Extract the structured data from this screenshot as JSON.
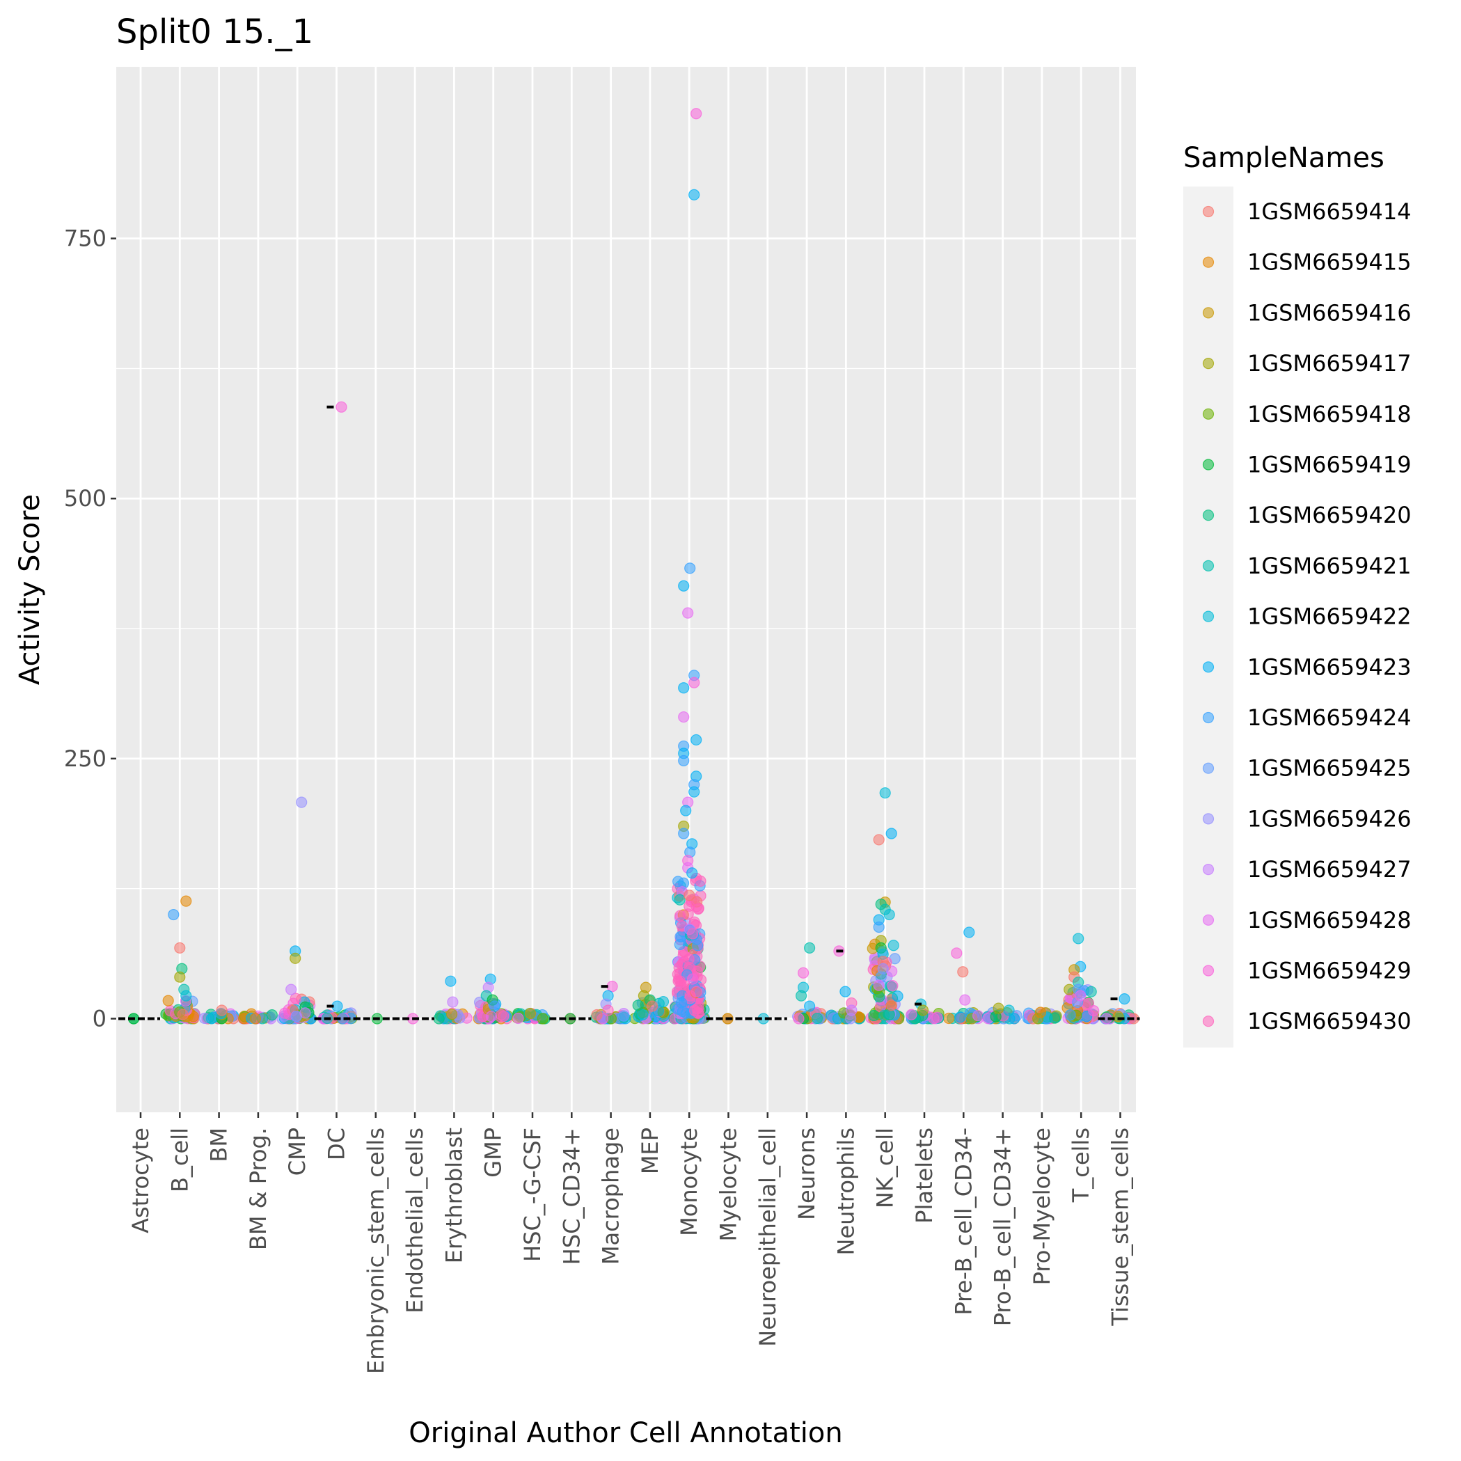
{
  "chart_data": {
    "type": "scatter",
    "title": "Split0 15._1",
    "xlabel": "Original Author Cell Annotation",
    "ylabel": "Activity Score",
    "ylim": [
      -90,
      915
    ],
    "yticks": [
      0,
      250,
      500,
      750
    ],
    "grid": true,
    "legend_position": "right",
    "legend_title": "SampleNames",
    "categories": [
      "Astrocyte",
      "B_cell",
      "BM",
      "BM & Prog.",
      "CMP",
      "DC",
      "Embryonic_stem_cells",
      "Endothelial_cells",
      "Erythroblast",
      "GMP",
      "HSC_-G-CSF",
      "HSC_CD34+",
      "Macrophage",
      "MEP",
      "Monocyte",
      "Myelocyte",
      "Neuroepithelial_cell",
      "Neurons",
      "Neutrophils",
      "NK_cell",
      "Platelets",
      "Pre-B_cell_CD34-",
      "Pro-B_cell_CD34+",
      "Pro-Myelocyte",
      "T_cells",
      "Tissue_stem_cells"
    ],
    "series": [
      {
        "name": "1GSM6659414",
        "color": "#F8766D"
      },
      {
        "name": "1GSM6659415",
        "color": "#E58700"
      },
      {
        "name": "1GSM6659416",
        "color": "#C99800"
      },
      {
        "name": "1GSM6659417",
        "color": "#A3A500"
      },
      {
        "name": "1GSM6659418",
        "color": "#6BB100"
      },
      {
        "name": "1GSM6659419",
        "color": "#00BA38"
      },
      {
        "name": "1GSM6659420",
        "color": "#00BF7D"
      },
      {
        "name": "1GSM6659421",
        "color": "#00C0AF"
      },
      {
        "name": "1GSM6659422",
        "color": "#00BCD8"
      },
      {
        "name": "1GSM6659423",
        "color": "#00B0F6"
      },
      {
        "name": "1GSM6659424",
        "color": "#35A2FF"
      },
      {
        "name": "1GSM6659425",
        "color": "#619CFF"
      },
      {
        "name": "1GSM6659426",
        "color": "#9590FF"
      },
      {
        "name": "1GSM6659427",
        "color": "#C77CFF"
      },
      {
        "name": "1GSM6659428",
        "color": "#E76BF3"
      },
      {
        "name": "1GSM6659429",
        "color": "#FA62DB"
      },
      {
        "name": "1GSM6659430",
        "color": "#FF62BC"
      }
    ],
    "points": [
      {
        "c": "DC",
        "y": 588,
        "s": 15
      },
      {
        "c": "Monocyte",
        "y": 870,
        "s": 15
      },
      {
        "c": "Monocyte",
        "y": 792,
        "s": 9
      },
      {
        "c": "Monocyte",
        "y": 433,
        "s": 10
      },
      {
        "c": "Monocyte",
        "y": 416,
        "s": 9
      },
      {
        "c": "Monocyte",
        "y": 390,
        "s": 14
      },
      {
        "c": "Monocyte",
        "y": 330,
        "s": 10
      },
      {
        "c": "Monocyte",
        "y": 323,
        "s": 15
      },
      {
        "c": "Monocyte",
        "y": 318,
        "s": 9
      },
      {
        "c": "Monocyte",
        "y": 290,
        "s": 14
      },
      {
        "c": "Monocyte",
        "y": 268,
        "s": 9
      },
      {
        "c": "Monocyte",
        "y": 262,
        "s": 10
      },
      {
        "c": "Monocyte",
        "y": 255,
        "s": 9
      },
      {
        "c": "Monocyte",
        "y": 248,
        "s": 10
      },
      {
        "c": "Monocyte",
        "y": 233,
        "s": 9
      },
      {
        "c": "Monocyte",
        "y": 225,
        "s": 10
      },
      {
        "c": "Monocyte",
        "y": 218,
        "s": 9
      },
      {
        "c": "Monocyte",
        "y": 208,
        "s": 14
      },
      {
        "c": "Monocyte",
        "y": 200,
        "s": 9
      },
      {
        "c": "Monocyte",
        "y": 185,
        "s": 3
      },
      {
        "c": "Monocyte",
        "y": 178,
        "s": 10
      },
      {
        "c": "Monocyte",
        "y": 168,
        "s": 9
      },
      {
        "c": "Monocyte",
        "y": 160,
        "s": 10
      },
      {
        "c": "Monocyte",
        "y": 152,
        "s": 15
      },
      {
        "c": "Monocyte",
        "y": 145,
        "s": 14
      },
      {
        "c": "Monocyte",
        "y": 140,
        "s": 9
      },
      {
        "c": "CMP",
        "y": 208,
        "s": 12
      },
      {
        "c": "CMP",
        "y": 65,
        "s": 9
      },
      {
        "c": "CMP",
        "y": 58,
        "s": 3
      },
      {
        "c": "CMP",
        "y": 28,
        "s": 13
      },
      {
        "c": "B_cell",
        "y": 113,
        "s": 1
      },
      {
        "c": "B_cell",
        "y": 100,
        "s": 10
      },
      {
        "c": "B_cell",
        "y": 68,
        "s": 0
      },
      {
        "c": "B_cell",
        "y": 48,
        "s": 6
      },
      {
        "c": "B_cell",
        "y": 40,
        "s": 3
      },
      {
        "c": "B_cell",
        "y": 28,
        "s": 7
      },
      {
        "c": "B_cell",
        "y": 22,
        "s": 8
      },
      {
        "c": "NK_cell",
        "y": 217,
        "s": 8
      },
      {
        "c": "NK_cell",
        "y": 178,
        "s": 9
      },
      {
        "c": "NK_cell",
        "y": 172,
        "s": 0
      },
      {
        "c": "NK_cell",
        "y": 112,
        "s": 2
      },
      {
        "c": "NK_cell",
        "y": 110,
        "s": 6
      },
      {
        "c": "NK_cell",
        "y": 105,
        "s": 7
      },
      {
        "c": "NK_cell",
        "y": 100,
        "s": 8
      },
      {
        "c": "NK_cell",
        "y": 95,
        "s": 9
      },
      {
        "c": "NK_cell",
        "y": 88,
        "s": 10
      },
      {
        "c": "NK_cell",
        "y": 75,
        "s": 3
      },
      {
        "c": "NK_cell",
        "y": 68,
        "s": 5
      },
      {
        "c": "NK_cell",
        "y": 62,
        "s": 8
      },
      {
        "c": "NK_cell",
        "y": 55,
        "s": 0
      },
      {
        "c": "NK_cell",
        "y": 48,
        "s": 12
      },
      {
        "c": "NK_cell",
        "y": 40,
        "s": 11
      },
      {
        "c": "NK_cell",
        "y": 32,
        "s": 14
      },
      {
        "c": "Neurons",
        "y": 68,
        "s": 7
      },
      {
        "c": "Neurons",
        "y": 44,
        "s": 15
      },
      {
        "c": "Neurons",
        "y": 30,
        "s": 8
      },
      {
        "c": "Neurons",
        "y": 22,
        "s": 7
      },
      {
        "c": "Neurons",
        "y": 12,
        "s": 9
      },
      {
        "c": "Neutrophils",
        "y": 65,
        "s": 15
      },
      {
        "c": "Neutrophils",
        "y": 26,
        "s": 9
      },
      {
        "c": "Neutrophils",
        "y": 15,
        "s": 16
      },
      {
        "c": "Neutrophils",
        "y": 8,
        "s": 13
      },
      {
        "c": "Pre-B_cell_CD34-",
        "y": 83,
        "s": 9
      },
      {
        "c": "Pre-B_cell_CD34-",
        "y": 63,
        "s": 15
      },
      {
        "c": "Pre-B_cell_CD34-",
        "y": 45,
        "s": 0
      },
      {
        "c": "Pre-B_cell_CD34-",
        "y": 18,
        "s": 14
      },
      {
        "c": "T_cells",
        "y": 77,
        "s": 8
      },
      {
        "c": "T_cells",
        "y": 50,
        "s": 9
      },
      {
        "c": "T_cells",
        "y": 47,
        "s": 2
      },
      {
        "c": "T_cells",
        "y": 40,
        "s": 0
      },
      {
        "c": "T_cells",
        "y": 35,
        "s": 7
      },
      {
        "c": "T_cells",
        "y": 28,
        "s": 11
      },
      {
        "c": "T_cells",
        "y": 22,
        "s": 14
      },
      {
        "c": "Erythroblast",
        "y": 36,
        "s": 9
      },
      {
        "c": "Erythroblast",
        "y": 16,
        "s": 13
      },
      {
        "c": "GMP",
        "y": 38,
        "s": 9
      },
      {
        "c": "GMP",
        "y": 30,
        "s": 13
      },
      {
        "c": "GMP",
        "y": 22,
        "s": 7
      },
      {
        "c": "GMP",
        "y": 18,
        "s": 5
      },
      {
        "c": "GMP",
        "y": 12,
        "s": 10
      },
      {
        "c": "Macrophage",
        "y": 31,
        "s": 15
      },
      {
        "c": "Macrophage",
        "y": 22,
        "s": 9
      },
      {
        "c": "Macrophage",
        "y": 14,
        "s": 12
      },
      {
        "c": "Macrophage",
        "y": 8,
        "s": 16
      },
      {
        "c": "MEP",
        "y": 30,
        "s": 2
      },
      {
        "c": "MEP",
        "y": 22,
        "s": 3
      },
      {
        "c": "MEP",
        "y": 18,
        "s": 6
      },
      {
        "c": "MEP",
        "y": 12,
        "s": 0
      },
      {
        "c": "DC",
        "y": 12,
        "s": 9
      },
      {
        "c": "Platelets",
        "y": 14,
        "s": 8
      },
      {
        "c": "Platelets",
        "y": 8,
        "s": 3
      },
      {
        "c": "Tissue_stem_cells",
        "y": 19,
        "s": 9
      },
      {
        "c": "Tissue_stem_cells",
        "y": 2,
        "s": 2
      },
      {
        "c": "BM",
        "y": 8,
        "s": 0
      },
      {
        "c": "Pro-B_cell_CD34+",
        "y": 10,
        "s": 3
      },
      {
        "c": "Pro-B_cell_CD34+",
        "y": 8,
        "s": 8
      },
      {
        "c": "Pro-Myelocyte",
        "y": 6,
        "s": 1
      },
      {
        "c": "HSC_-G-CSF",
        "y": 5,
        "s": 2
      },
      {
        "c": "Myelocyte",
        "y": 0,
        "s": 0
      },
      {
        "c": "Myelocyte",
        "y": 0,
        "s": 2
      },
      {
        "c": "Astrocyte",
        "y": 0,
        "s": 6
      },
      {
        "c": "Astrocyte",
        "y": 0,
        "s": 5
      },
      {
        "c": "Embryonic_stem_cells",
        "y": 0,
        "s": 5
      },
      {
        "c": "Endothelial_cells",
        "y": 0,
        "s": 15
      },
      {
        "c": "HSC_CD34+",
        "y": 0,
        "s": 0
      },
      {
        "c": "HSC_CD34+",
        "y": 0,
        "s": 5
      },
      {
        "c": "Neuroepithelial_cell",
        "y": 0,
        "s": 8
      },
      {
        "c": "BM & Prog.",
        "y": 0,
        "s": 1
      }
    ]
  }
}
